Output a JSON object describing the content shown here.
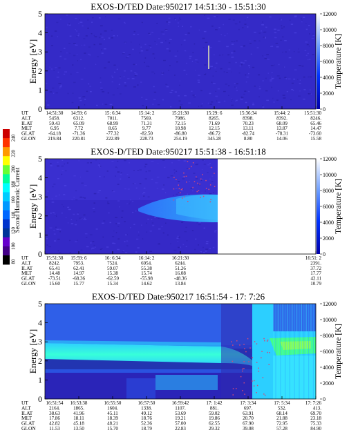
{
  "row_labels": [
    "UT",
    "ALT",
    "ILAT",
    "MLT",
    "GLAT",
    "GLON"
  ],
  "colorbar": {
    "title": "Second Harmonic Current",
    "ticks": [
      "240",
      "220",
      "200",
      "180",
      "160",
      "140",
      "120",
      "100",
      "80"
    ],
    "colors": [
      "#cc0000",
      "#ff3300",
      "#ff9900",
      "#ffff00",
      "#66ff33",
      "#00ff99",
      "#00ffff",
      "#00ccff",
      "#0099ff",
      "#0066ff",
      "#0033cc",
      "#003399",
      "#6600cc",
      "#440088",
      "#000000"
    ]
  },
  "chart_data": [
    {
      "type": "heatmap",
      "title": "EXOS-D/TED   Date:950217   14:51:30 - 15:51:30",
      "ylabel": "Energy [eV]",
      "y2label": "Temperature [K]",
      "ylim": [
        0,
        5
      ],
      "y2lim": [
        0,
        12000
      ],
      "yticks": [
        "0",
        "1",
        "2",
        "3",
        "4",
        "5"
      ],
      "y2ticks": [
        "0",
        "2000",
        "4000",
        "6000",
        "8000",
        "10000",
        "12000"
      ],
      "columns": [
        [
          "14:51:30",
          "5458.",
          "59.43",
          "6.95",
          "-64.18",
          "219.84"
        ],
        [
          "14:59: 6",
          "6312.",
          "65.09",
          "7.72",
          "-71.36",
          "220.81"
        ],
        [
          "15: 6:34",
          "7011.",
          "68.99",
          "8.65",
          "-77.32",
          "222.89"
        ],
        [
          "15:14: 2",
          "7569.",
          "71.31",
          "9.77",
          "-82.50",
          "228.73"
        ],
        [
          "15:21:30",
          "7986.",
          "72.15",
          "10.98",
          "-86.80",
          "254.19"
        ],
        [
          "15:29: 6",
          "8265.",
          "71.69",
          "12.15",
          "-86.72",
          "345.28"
        ],
        [
          "15:36:34",
          "8398.",
          "70.23",
          "13.11",
          "-82.74",
          "8.80"
        ],
        [
          "15:44: 2",
          "8392.",
          "68.09",
          "13.87",
          "-78.31",
          "14.06"
        ],
        [
          "15:51:30",
          "8246.",
          "65.46",
          "14.47",
          "-73.60",
          "15.58"
        ]
      ]
    },
    {
      "type": "heatmap",
      "title": "EXOS-D/TED   Date:950217   15:51:38 - 16:51:18",
      "ylabel": "Energy [eV]",
      "y2label": "Temperature [K]",
      "ylim": [
        0,
        5
      ],
      "y2lim": [
        0,
        12000
      ],
      "yticks": [
        "0",
        "1",
        "2",
        "3",
        "4",
        "5"
      ],
      "y2ticks": [
        "0",
        "2000",
        "4000",
        "6000",
        "8000",
        "10000",
        "12000"
      ],
      "columns": [
        [
          "15:51:38",
          "8242.",
          "65.41",
          "14.48",
          "-73.51",
          "15.60"
        ],
        [
          "15:59: 6",
          "7953.",
          "62.41",
          "14.97",
          "-68.36",
          "15.77"
        ],
        [
          "16: 6:34",
          "7524.",
          "59.07",
          "15.38",
          "-62.59",
          "15.34"
        ],
        [
          "16:14: 2",
          "6954.",
          "55.38",
          "15.74",
          "-55.98",
          "14.62"
        ],
        [
          "16:21:30",
          "6244.",
          "51.26",
          "16.08",
          "-48.36",
          "13.84"
        ],
        [
          "16:51: 2",
          "2391.",
          "37.72",
          "17.77",
          "42.11",
          "10.79"
        ]
      ]
    },
    {
      "type": "heatmap",
      "title": "EXOS-D/TED   Date:950217   16:51:54 - 17: 7:26",
      "ylabel": "Energy [eV]",
      "y2label": "Temperature [K]",
      "ylim": [
        0,
        5
      ],
      "y2lim": [
        0,
        12000
      ],
      "yticks": [
        "0",
        "1",
        "2",
        "3",
        "4",
        "5"
      ],
      "y2ticks": [
        "0",
        "2000",
        "4000",
        "6000",
        "8000",
        "10000",
        "12000"
      ],
      "columns": [
        [
          "16:51:54",
          "2164.",
          "38.63",
          "17.86",
          "42.82",
          "11.53"
        ],
        [
          "16:53:38",
          "1865.",
          "41.96",
          "18.11",
          "45.18",
          "13.50"
        ],
        [
          "16:55:50",
          "1604.",
          "45.11",
          "18.39",
          "48.21",
          "15.70"
        ],
        [
          "16:57:50",
          "1338.",
          "49.12",
          "18.76",
          "52.36",
          "18.79"
        ],
        [
          "16:59:42",
          "1107.",
          "53.69",
          "19.21",
          "57.00",
          "22.83"
        ],
        [
          "17: 1:42",
          "881.",
          "59.02",
          "19.86",
          "62.55",
          "29.32"
        ],
        [
          "17: 3:34",
          "697.",
          "63.91",
          "20.70",
          "67.90",
          "39.08"
        ],
        [
          "17: 5:34",
          "532.",
          "68.14",
          "21.88",
          "72.95",
          "57.28"
        ],
        [
          "17: 7:26",
          "413.",
          "69.70",
          "23.18",
          "75.33",
          "84.90"
        ]
      ]
    }
  ]
}
